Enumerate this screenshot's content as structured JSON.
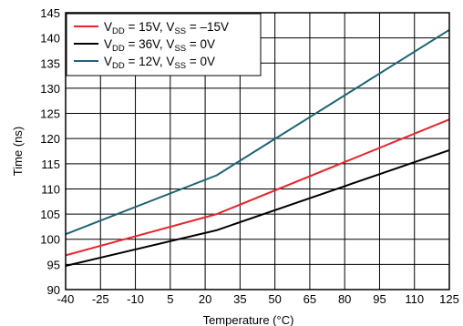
{
  "chart_data": {
    "type": "line",
    "title": "",
    "xlabel": "Temperature (°C)",
    "ylabel": "Time (ns)",
    "xlim": [
      -40,
      125
    ],
    "ylim": [
      90,
      145
    ],
    "grid": true,
    "legend_position": "top-left",
    "x_ticks": [
      -40,
      -25,
      -10,
      5,
      20,
      35,
      50,
      65,
      80,
      95,
      110,
      125
    ],
    "y_ticks": [
      90,
      95,
      100,
      105,
      110,
      115,
      120,
      125,
      130,
      135,
      140,
      145
    ],
    "series": [
      {
        "name": "VDD = 15V, VSS = –15V",
        "legend": {
          "v1": "V",
          "s1": "DD",
          "t1": " = 15V, V",
          "s2": "SS",
          "t2": " = –15V"
        },
        "color": "#e8262b",
        "x": [
          -40,
          25,
          125
        ],
        "y": [
          96.8,
          105.0,
          123.8
        ]
      },
      {
        "name": "VDD = 36V, VSS = 0V",
        "legend": {
          "v1": "V",
          "s1": "DD",
          "t1": " = 36V, V",
          "s2": "SS",
          "t2": " = 0V"
        },
        "color": "#000000",
        "x": [
          -40,
          25,
          125
        ],
        "y": [
          94.7,
          101.8,
          117.7
        ]
      },
      {
        "name": "VDD = 12V, VSS = 0V",
        "legend": {
          "v1": "V",
          "s1": "DD",
          "t1": " = 12V, V",
          "s2": "SS",
          "t2": " = 0V"
        },
        "color": "#1e6373",
        "x": [
          -40,
          25,
          125
        ],
        "y": [
          101.0,
          112.7,
          141.6
        ]
      }
    ]
  }
}
